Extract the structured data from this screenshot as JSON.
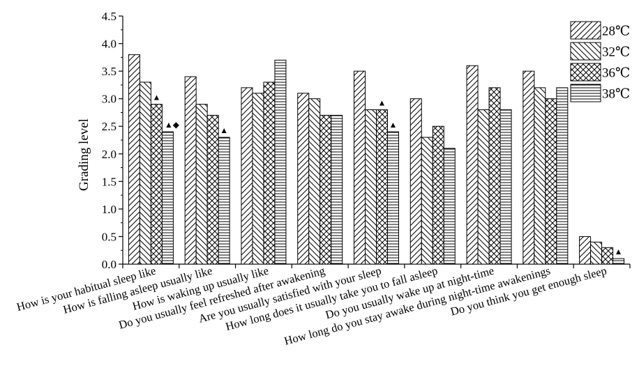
{
  "chart_data": {
    "type": "bar",
    "title": "",
    "xlabel": "",
    "ylabel": "Grading level",
    "ylim": [
      0,
      4.5
    ],
    "yticks": [
      "0.0",
      "0.5",
      "1.0",
      "1.5",
      "2.0",
      "2.5",
      "3.0",
      "3.5",
      "4.0",
      "4.5"
    ],
    "grid": false,
    "legend_position": "top-right",
    "categories": [
      "How is your habitual sleep like",
      "How is falling asleep usually like",
      "How is waking up usually like",
      "Do you usually feel refreshed after awakening",
      "Are you usually satisfied with your sleep",
      "How long does it usually take you to fall asleep",
      "Do you usually wake up at night-time",
      "How long do you stay awake during night-time awakenings",
      "Do you think you get enough sleep"
    ],
    "series": [
      {
        "name": "28℃",
        "pattern": "diag-up",
        "values": [
          3.8,
          3.4,
          3.2,
          3.1,
          3.5,
          3.0,
          3.6,
          3.5,
          0.5
        ]
      },
      {
        "name": "32℃",
        "pattern": "diag-down",
        "values": [
          3.3,
          2.9,
          3.1,
          3.0,
          2.8,
          2.3,
          2.8,
          3.2,
          0.4
        ]
      },
      {
        "name": "36℃",
        "pattern": "cross",
        "values": [
          2.9,
          2.7,
          3.3,
          2.7,
          2.8,
          2.5,
          3.2,
          3.0,
          0.3
        ]
      },
      {
        "name": "38℃",
        "pattern": "horizontal",
        "values": [
          2.4,
          2.3,
          3.7,
          2.7,
          2.4,
          2.1,
          2.8,
          3.2,
          0.1
        ]
      }
    ],
    "annotations": [
      {
        "category": 0,
        "series": 2,
        "text": "▲"
      },
      {
        "category": 0,
        "series": 3,
        "text": "▲◆"
      },
      {
        "category": 1,
        "series": 3,
        "text": "▲"
      },
      {
        "category": 4,
        "series": 2,
        "text": "▲"
      },
      {
        "category": 4,
        "series": 3,
        "text": "▲"
      },
      {
        "category": 8,
        "series": 3,
        "text": "▲"
      }
    ]
  }
}
